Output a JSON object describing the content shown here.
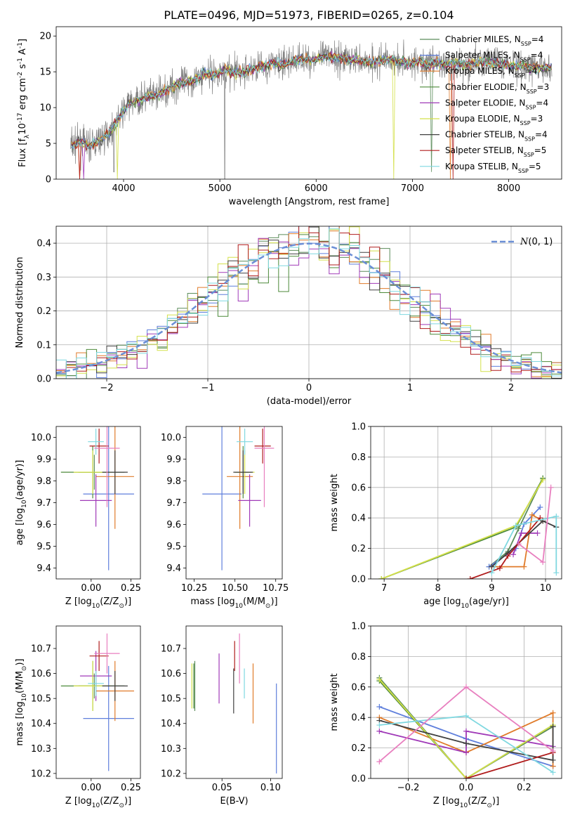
{
  "title": "PLATE=0496, MJD=51973, FIBERID=0265, z=0.104",
  "series": [
    {
      "name": "Chabrier MILES, N$_{SSP}$=4",
      "label_main": "Chabrier MILES, N",
      "label_sub": "SSP",
      "label_tail": "=4",
      "color": "#5b8c5a"
    },
    {
      "name": "Salpeter MILES, N$_{SSP}$=4",
      "label_main": "Salpeter MILES, N",
      "label_sub": "SSP",
      "label_tail": "=4",
      "color": "#5f7fdc"
    },
    {
      "name": "Kroupa MILES, N$_{SSP}$=4",
      "label_main": "Kroupa MILES, N",
      "label_sub": "SSP",
      "label_tail": "=4",
      "color": "#e07b2a"
    },
    {
      "name": "Chabrier ELODIE, N$_{SSP}$=3",
      "label_main": "Chabrier ELODIE, N",
      "label_sub": "SSP",
      "label_tail": "=3",
      "color": "#4d8a3a"
    },
    {
      "name": "Salpeter ELODIE, N$_{SSP}$=4",
      "label_main": "Salpeter ELODIE, N",
      "label_sub": "SSP",
      "label_tail": "=4",
      "color": "#a03ab8"
    },
    {
      "name": "Kroupa ELODIE, N$_{SSP}$=3",
      "label_main": "Kroupa ELODIE, N",
      "label_sub": "SSP",
      "label_tail": "=3",
      "color": "#d4e04a"
    },
    {
      "name": "Chabrier STELIB, N$_{SSP}$=4",
      "label_main": "Chabrier STELIB, N",
      "label_sub": "SSP",
      "label_tail": "=4",
      "color": "#404040"
    },
    {
      "name": "Salpeter STELIB, N$_{SSP}$=5",
      "label_main": "Salpeter STELIB, N",
      "label_sub": "SSP",
      "label_tail": "=5",
      "color": "#b01c1c"
    },
    {
      "name": "Kroupa STELIB, N$_{SSP}$=5",
      "label_main": "Kroupa STELIB, N",
      "label_sub": "SSP",
      "label_tail": "=5",
      "color": "#7fd8e0"
    }
  ],
  "extra_colors": {
    "pink": "#e87fbf",
    "data": "#808080",
    "gauss": "#6b8fd6"
  },
  "chart_data": [
    {
      "id": "spectrum",
      "type": "line",
      "xlabel": "wavelength [Angstrom, rest frame]",
      "ylabel": "Flux [f$_\\lambda$10$^{-17}$ erg cm$^{-2}$ s$^{-1}$ A$^{-1}$]",
      "xlim": [
        3300,
        8550
      ],
      "ylim": [
        0,
        21.3
      ],
      "xticks": [
        4000,
        5000,
        6000,
        7000,
        8000
      ],
      "yticks": [
        0,
        5,
        10,
        15,
        20
      ],
      "continuum": [
        [
          3450,
          4.7
        ],
        [
          3550,
          5.2
        ],
        [
          3650,
          4.6
        ],
        [
          3750,
          5.5
        ],
        [
          3850,
          6.5
        ],
        [
          3950,
          8.5
        ],
        [
          4050,
          10.5
        ],
        [
          4150,
          11.0
        ],
        [
          4250,
          11.5
        ],
        [
          4350,
          11.8
        ],
        [
          4450,
          12.5
        ],
        [
          4550,
          13.2
        ],
        [
          4650,
          13.5
        ],
        [
          4750,
          14.0
        ],
        [
          4850,
          14.8
        ],
        [
          4950,
          14.6
        ],
        [
          5050,
          15.2
        ],
        [
          5150,
          14.8
        ],
        [
          5250,
          15.0
        ],
        [
          5350,
          15.5
        ],
        [
          5450,
          15.8
        ],
        [
          5550,
          16.2
        ],
        [
          5650,
          16.0
        ],
        [
          5750,
          16.5
        ],
        [
          5850,
          16.8
        ],
        [
          5950,
          16.6
        ],
        [
          6050,
          17.0
        ],
        [
          6150,
          17.2
        ],
        [
          6250,
          17.0
        ],
        [
          6350,
          16.8
        ],
        [
          6450,
          16.6
        ],
        [
          6550,
          16.4
        ],
        [
          6650,
          16.5
        ],
        [
          6750,
          16.8
        ],
        [
          6850,
          16.5
        ],
        [
          6950,
          16.2
        ],
        [
          7050,
          16.3
        ],
        [
          7150,
          16.0
        ],
        [
          7250,
          16.3
        ],
        [
          7350,
          16.0
        ],
        [
          7450,
          16.2
        ],
        [
          7550,
          16.0
        ],
        [
          7650,
          16.3
        ],
        [
          7750,
          16.4
        ],
        [
          7850,
          16.2
        ],
        [
          7950,
          16.0
        ],
        [
          8050,
          15.8
        ],
        [
          8150,
          15.8
        ],
        [
          8250,
          15.6
        ],
        [
          8350,
          15.5
        ],
        [
          8450,
          15.5
        ]
      ],
      "grid": false,
      "legend": "top-right"
    },
    {
      "id": "residuals",
      "type": "step-histogram",
      "xlabel": "(data-model)/error",
      "ylabel": "Normed distribution",
      "xlim": [
        -2.5,
        2.5
      ],
      "ylim": [
        0,
        0.45
      ],
      "xticks": [
        -2,
        -1,
        0,
        1,
        2
      ],
      "yticks": [
        0.0,
        0.1,
        0.2,
        0.3,
        0.4
      ],
      "legend_label": "$\\mathcal{N}(0,1)$",
      "legend_main": "N",
      "legend_tail": "(0, 1)",
      "bin_width": 0.1,
      "grid": true,
      "legend": "top-right"
    },
    {
      "id": "z_age",
      "type": "errorbar",
      "xlabel": "Z [log$_{10}$(Z/Z$_\\odot$)]",
      "ylabel": "age  [log$_{10}$(age/yr)]",
      "xlim": [
        -0.22,
        0.31
      ],
      "ylim": [
        9.35,
        10.05
      ],
      "xticks": [
        0.0,
        0.25
      ],
      "yticks": [
        9.4,
        9.5,
        9.6,
        9.7,
        9.8,
        9.9,
        10.0
      ],
      "points": [
        {
          "c": 0,
          "x": 0.02,
          "y": 9.84,
          "xe": 0.1,
          "ye": 0.08
        },
        {
          "c": 1,
          "x": 0.11,
          "y": 9.74,
          "xe": 0.16,
          "ye": 0.35
        },
        {
          "c": 2,
          "x": 0.15,
          "y": 9.82,
          "xe": 0.12,
          "ye": 0.24
        },
        {
          "c": 3,
          "x": 0.01,
          "y": 9.84,
          "xe": 0.2,
          "ye": 0.12
        },
        {
          "c": 4,
          "x": 0.03,
          "y": 9.71,
          "xe": 0.1,
          "ye": 0.12
        },
        {
          "c": 5,
          "x": 0.01,
          "y": 9.84,
          "xe": 0.12,
          "ye": 0.1
        },
        {
          "c": 6,
          "x": 0.15,
          "y": 9.84,
          "xe": 0.08,
          "ye": 0.1
        },
        {
          "c": 7,
          "x": 0.05,
          "y": 9.96,
          "xe": 0.06,
          "ye": 0.08
        },
        {
          "c": 8,
          "x": 0.03,
          "y": 9.98,
          "xe": 0.05,
          "ye": 0.06
        },
        {
          "c": 9,
          "x": 0.1,
          "y": 9.95,
          "xe": 0.08,
          "ye": 0.27
        }
      ]
    },
    {
      "id": "mass_age",
      "type": "errorbar",
      "xlabel": "mass [log$_{10}$(M/M$_\\odot$)]",
      "ylabel": "",
      "xlim": [
        10.2,
        10.79
      ],
      "ylim": [
        9.35,
        10.05
      ],
      "xticks": [
        10.25,
        10.5,
        10.75
      ],
      "yticks": [
        9.4,
        9.5,
        9.6,
        9.7,
        9.8,
        9.9,
        10.0
      ],
      "points": [
        {
          "c": 0,
          "x": 10.55,
          "y": 9.84,
          "xe": 0.03,
          "ye": 0.08
        },
        {
          "c": 1,
          "x": 10.42,
          "y": 9.74,
          "xe": 0.12,
          "ye": 0.35
        },
        {
          "c": 2,
          "x": 10.53,
          "y": 9.82,
          "xe": 0.08,
          "ye": 0.24
        },
        {
          "c": 3,
          "x": 10.55,
          "y": 9.84,
          "xe": 0.05,
          "ye": 0.12
        },
        {
          "c": 4,
          "x": 10.59,
          "y": 9.71,
          "xe": 0.07,
          "ye": 0.12
        },
        {
          "c": 5,
          "x": 10.56,
          "y": 9.84,
          "xe": 0.06,
          "ye": 0.1
        },
        {
          "c": 6,
          "x": 10.55,
          "y": 9.84,
          "xe": 0.06,
          "ye": 0.1
        },
        {
          "c": 7,
          "x": 10.67,
          "y": 9.96,
          "xe": 0.05,
          "ye": 0.08
        },
        {
          "c": 8,
          "x": 10.56,
          "y": 9.98,
          "xe": 0.05,
          "ye": 0.06
        },
        {
          "c": 9,
          "x": 10.68,
          "y": 9.95,
          "xe": 0.06,
          "ye": 0.27
        }
      ]
    },
    {
      "id": "age_weight",
      "type": "line-markers",
      "xlabel": "age  [log$_{10}$(age/yr)]",
      "ylabel": "mass weight",
      "xlim": [
        6.75,
        10.3
      ],
      "ylim": [
        0,
        1.0
      ],
      "xticks": [
        7,
        8,
        9,
        10
      ],
      "yticks": [
        0.0,
        0.2,
        0.4,
        0.6,
        0.8,
        1.0
      ],
      "grid": true,
      "lines": [
        {
          "c": 0,
          "pts": [
            [
              8.95,
              0.08
            ],
            [
              9.3,
              0.18
            ],
            [
              9.5,
              0.33
            ],
            [
              9.95,
              0.66
            ]
          ]
        },
        {
          "c": 1,
          "pts": [
            [
              8.95,
              0.08
            ],
            [
              9.45,
              0.2
            ],
            [
              9.6,
              0.36
            ],
            [
              9.9,
              0.47
            ]
          ]
        },
        {
          "c": 2,
          "pts": [
            [
              9.0,
              0.08
            ],
            [
              9.6,
              0.08
            ],
            [
              9.75,
              0.42
            ],
            [
              9.95,
              0.38
            ]
          ]
        },
        {
          "c": 3,
          "pts": [
            [
              6.95,
              0.0
            ],
            [
              9.45,
              0.34
            ],
            [
              9.95,
              0.66
            ]
          ]
        },
        {
          "c": 4,
          "pts": [
            [
              9.4,
              0.16
            ],
            [
              9.55,
              0.3
            ],
            [
              9.85,
              0.3
            ]
          ]
        },
        {
          "c": 5,
          "pts": [
            [
              6.95,
              0.0
            ],
            [
              9.45,
              0.35
            ],
            [
              9.95,
              0.65
            ]
          ]
        },
        {
          "c": 6,
          "pts": [
            [
              9.0,
              0.08
            ],
            [
              9.3,
              0.17
            ],
            [
              9.95,
              0.38
            ],
            [
              10.2,
              0.34
            ]
          ]
        },
        {
          "c": 7,
          "pts": [
            [
              8.6,
              0.0
            ],
            [
              9.15,
              0.07
            ],
            [
              9.3,
              0.15
            ],
            [
              9.9,
              0.4
            ]
          ]
        },
        {
          "c": 8,
          "pts": [
            [
              9.0,
              0.04
            ],
            [
              9.45,
              0.35
            ],
            [
              10.2,
              0.41
            ],
            [
              10.2,
              0.04
            ]
          ]
        },
        {
          "c": 9,
          "pts": [
            [
              9.5,
              0.23
            ],
            [
              9.95,
              0.11
            ],
            [
              10.1,
              0.6
            ]
          ]
        }
      ]
    },
    {
      "id": "z_mass",
      "type": "errorbar",
      "xlabel": "Z [log$_{10}$(Z/Z$_\\odot$)]",
      "ylabel": "mass [log$_{10}$(M/M$_\\odot$)]",
      "xlim": [
        -0.22,
        0.31
      ],
      "ylim": [
        10.18,
        10.79
      ],
      "xticks": [
        0.0,
        0.25
      ],
      "yticks": [
        10.2,
        10.3,
        10.4,
        10.5,
        10.6,
        10.7
      ],
      "points": [
        {
          "c": 0,
          "x": 0.02,
          "y": 10.55,
          "xe": 0.1,
          "ye": 0.05
        },
        {
          "c": 1,
          "x": 0.11,
          "y": 10.42,
          "xe": 0.16,
          "ye": 0.21
        },
        {
          "c": 2,
          "x": 0.15,
          "y": 10.53,
          "xe": 0.12,
          "ye": 0.12
        },
        {
          "c": 3,
          "x": 0.01,
          "y": 10.55,
          "xe": 0.2,
          "ye": 0.1
        },
        {
          "c": 4,
          "x": 0.03,
          "y": 10.59,
          "xe": 0.1,
          "ye": 0.1
        },
        {
          "c": 5,
          "x": 0.01,
          "y": 10.55,
          "xe": 0.12,
          "ye": 0.1
        },
        {
          "c": 6,
          "x": 0.15,
          "y": 10.55,
          "xe": 0.08,
          "ye": 0.06
        },
        {
          "c": 7,
          "x": 0.05,
          "y": 10.67,
          "xe": 0.06,
          "ye": 0.06
        },
        {
          "c": 8,
          "x": 0.03,
          "y": 10.56,
          "xe": 0.05,
          "ye": 0.05
        },
        {
          "c": 9,
          "x": 0.1,
          "y": 10.68,
          "xe": 0.08,
          "ye": 0.08
        }
      ]
    },
    {
      "id": "ebv_mass",
      "type": "errorbar",
      "xlabel": "E(B-V)",
      "ylabel": "",
      "xlim": [
        0.013,
        0.112
      ],
      "ylim": [
        10.18,
        10.79
      ],
      "xticks": [
        0.05,
        0.1
      ],
      "yticks": [
        10.2,
        10.3,
        10.4,
        10.5,
        10.6,
        10.7
      ],
      "points": [
        {
          "c": 0,
          "x": 0.022,
          "y": 10.55,
          "xe": 0,
          "ye": 0.1
        },
        {
          "c": 1,
          "x": 0.106,
          "y": 10.38,
          "xe": 0,
          "ye": 0.18
        },
        {
          "c": 2,
          "x": 0.082,
          "y": 10.52,
          "xe": 0,
          "ye": 0.12
        },
        {
          "c": 3,
          "x": 0.021,
          "y": 10.55,
          "xe": 0,
          "ye": 0.09
        },
        {
          "c": 4,
          "x": 0.047,
          "y": 10.58,
          "xe": 0,
          "ye": 0.1
        },
        {
          "c": 5,
          "x": 0.019,
          "y": 10.55,
          "xe": 0,
          "ye": 0.09
        },
        {
          "c": 6,
          "x": 0.062,
          "y": 10.53,
          "xe": 0,
          "ye": 0.09
        },
        {
          "c": 7,
          "x": 0.063,
          "y": 10.67,
          "xe": 0,
          "ye": 0.06
        },
        {
          "c": 8,
          "x": 0.073,
          "y": 10.56,
          "xe": 0,
          "ye": 0.06
        },
        {
          "c": 9,
          "x": 0.068,
          "y": 10.66,
          "xe": 0,
          "ye": 0.1
        }
      ]
    },
    {
      "id": "z_weight",
      "type": "line-markers",
      "xlabel": "Z [log$_{10}$(Z/Z$_\\odot$)]",
      "ylabel": "mass weight",
      "xlim": [
        -0.33,
        0.33
      ],
      "ylim": [
        0,
        1.0
      ],
      "xticks": [
        -0.2,
        0.0,
        0.2
      ],
      "yticks": [
        0.0,
        0.2,
        0.4,
        0.6,
        0.8,
        1.0
      ],
      "grid": true,
      "lines": [
        {
          "c": 0,
          "pts": [
            [
              -0.3,
              0.66
            ],
            [
              0.0,
              0.0
            ],
            [
              0.3,
              0.34
            ]
          ]
        },
        {
          "c": 1,
          "pts": [
            [
              -0.3,
              0.47
            ],
            [
              0.0,
              0.26
            ],
            [
              0.3,
              0.08
            ]
          ]
        },
        {
          "c": 2,
          "pts": [
            [
              -0.3,
              0.4
            ],
            [
              0.0,
              0.17
            ],
            [
              0.3,
              0.43
            ],
            [
              0.3,
              0.08
            ]
          ]
        },
        {
          "c": 3,
          "pts": [
            [
              -0.3,
              0.64
            ],
            [
              0.0,
              0.0
            ],
            [
              0.3,
              0.35
            ]
          ]
        },
        {
          "c": 4,
          "pts": [
            [
              -0.3,
              0.31
            ],
            [
              0.0,
              0.17
            ],
            [
              0.0,
              0.31
            ],
            [
              0.3,
              0.21
            ]
          ]
        },
        {
          "c": 5,
          "pts": [
            [
              -0.3,
              0.65
            ],
            [
              0.0,
              0.0
            ],
            [
              0.3,
              0.35
            ]
          ]
        },
        {
          "c": 6,
          "pts": [
            [
              -0.3,
              0.38
            ],
            [
              0.0,
              0.23
            ],
            [
              0.3,
              0.12
            ],
            [
              0.3,
              0.34
            ]
          ]
        },
        {
          "c": 7,
          "pts": [
            [
              0.0,
              0.0
            ],
            [
              0.3,
              0.17
            ]
          ]
        },
        {
          "c": 8,
          "pts": [
            [
              -0.3,
              0.35
            ],
            [
              0.0,
              0.41
            ],
            [
              0.3,
              0.04
            ]
          ]
        },
        {
          "c": 9,
          "pts": [
            [
              -0.3,
              0.11
            ],
            [
              0.0,
              0.6
            ],
            [
              0.3,
              0.18
            ]
          ]
        }
      ]
    }
  ]
}
